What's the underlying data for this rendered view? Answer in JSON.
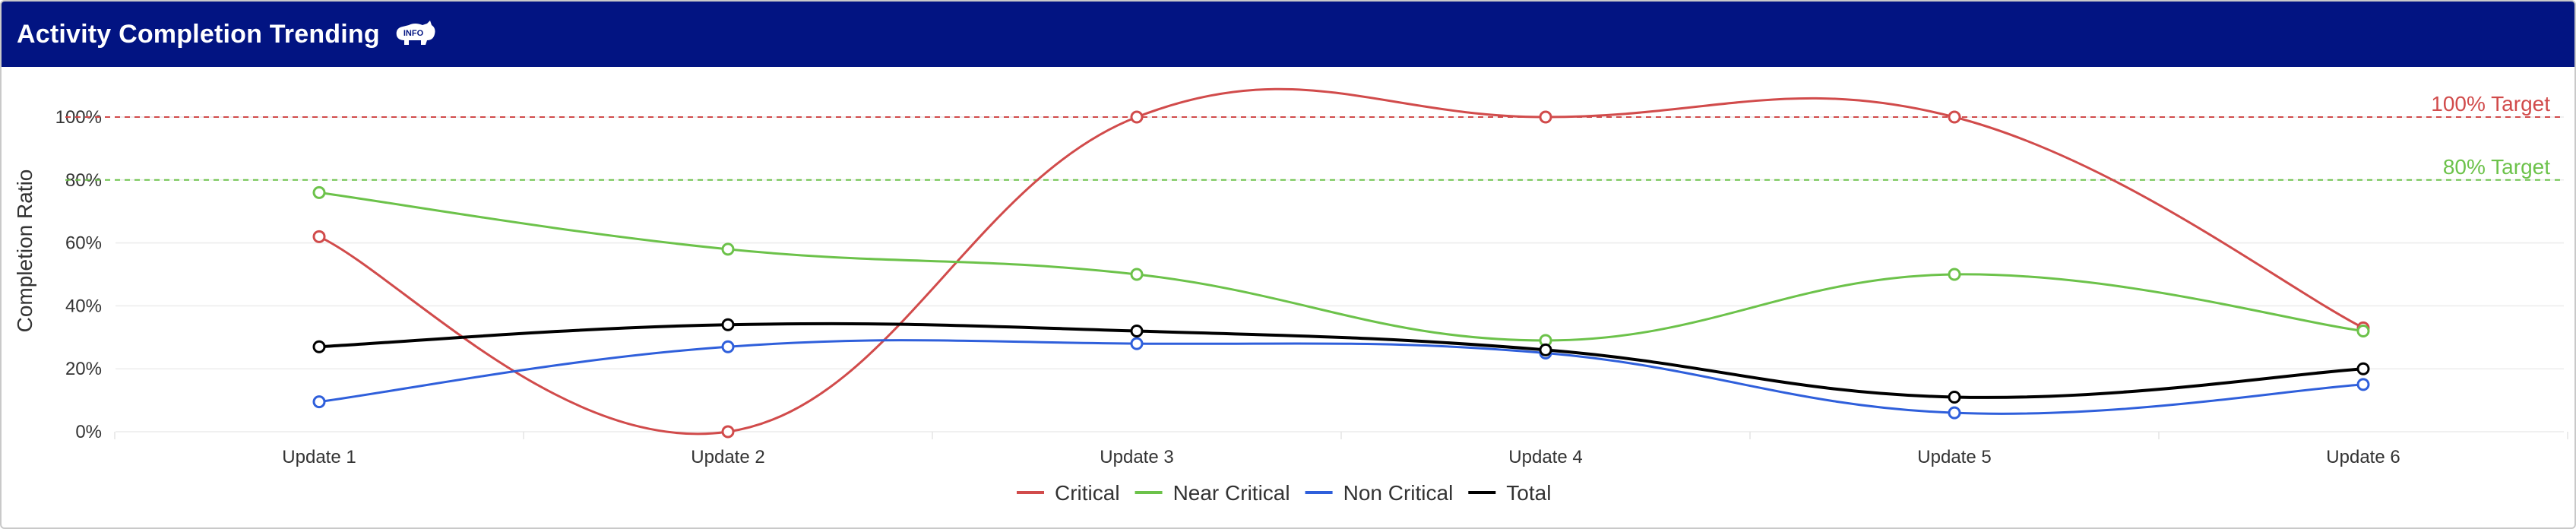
{
  "header": {
    "title": "Activity Completion Trending",
    "info_icon": "info-rhino-icon",
    "info_text": "INFO"
  },
  "colors": {
    "header_bg": "#021482",
    "critical": "#d14b4b",
    "near_critical": "#6cc24a",
    "non_critical": "#2f5fdb",
    "total": "#000000"
  },
  "chart_data": {
    "type": "line",
    "ylabel": "Completion Ratio",
    "xlabel": "",
    "categories": [
      "Update 1",
      "Update 2",
      "Update 3",
      "Update 4",
      "Update 5",
      "Update 6"
    ],
    "yticks": [
      "0%",
      "20%",
      "40%",
      "60%",
      "80%",
      "100%"
    ],
    "ylim": [
      0,
      100
    ],
    "grid": true,
    "legend_position": "bottom-center",
    "series": [
      {
        "name": "Critical",
        "color": "#d14b4b",
        "values": [
          62,
          0,
          100,
          100,
          100,
          33
        ]
      },
      {
        "name": "Near Critical",
        "color": "#6cc24a",
        "values": [
          76,
          58,
          50,
          29,
          50,
          32
        ]
      },
      {
        "name": "Non Critical",
        "color": "#2f5fdb",
        "values": [
          9.5,
          27,
          28,
          25,
          6,
          15
        ]
      },
      {
        "name": "Total",
        "color": "#000000",
        "values": [
          27,
          34,
          32,
          26,
          11,
          20
        ]
      }
    ],
    "targets": [
      {
        "label": "100% Target",
        "value": 100,
        "color": "#d14b4b"
      },
      {
        "label": "80% Target",
        "value": 80,
        "color": "#6cc24a"
      }
    ]
  }
}
